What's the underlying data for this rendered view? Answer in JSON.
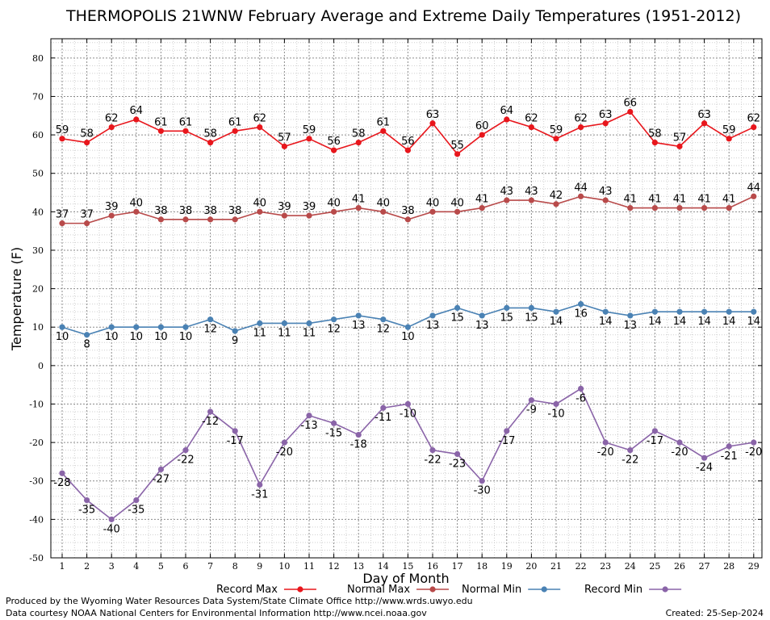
{
  "chart_data": {
    "type": "line",
    "title": "THERMOPOLIS 21WNW February Average and Extreme Daily Temperatures (1951-2012)",
    "xlabel": "Day of Month",
    "ylabel": "Temperature (F)",
    "ylim": [
      -50,
      85
    ],
    "yticks": [
      -50,
      -40,
      -30,
      -20,
      -10,
      0,
      10,
      20,
      30,
      40,
      50,
      60,
      70,
      80
    ],
    "x": [
      1,
      2,
      3,
      4,
      5,
      6,
      7,
      8,
      9,
      10,
      11,
      12,
      13,
      14,
      15,
      16,
      17,
      18,
      19,
      20,
      21,
      22,
      23,
      24,
      25,
      26,
      27,
      28,
      29
    ],
    "grid": true,
    "legend_position": "bottom",
    "series": [
      {
        "name": "Record Max",
        "color": "#e8161c",
        "values": [
          59,
          58,
          62,
          64,
          61,
          61,
          58,
          61,
          62,
          57,
          59,
          56,
          58,
          61,
          56,
          63,
          55,
          60,
          64,
          62,
          59,
          62,
          63,
          66,
          58,
          57,
          63,
          59,
          62
        ]
      },
      {
        "name": "Normal Max",
        "color": "#b84a4a",
        "values": [
          37,
          37,
          39,
          40,
          38,
          38,
          38,
          38,
          40,
          39,
          39,
          40,
          41,
          40,
          38,
          40,
          40,
          41,
          43,
          43,
          42,
          44,
          43,
          41,
          41,
          41,
          41,
          41,
          44
        ]
      },
      {
        "name": "Normal Min",
        "color": "#4a82b4",
        "values": [
          10,
          8,
          10,
          10,
          10,
          10,
          12,
          9,
          11,
          11,
          11,
          12,
          13,
          12,
          10,
          13,
          15,
          13,
          15,
          15,
          14,
          16,
          14,
          13,
          14,
          14,
          14,
          14,
          14
        ]
      },
      {
        "name": "Record Min",
        "color": "#8a64a8",
        "values": [
          -28,
          -35,
          -40,
          -35,
          -27,
          -22,
          -12,
          -17,
          -31,
          -20,
          -13,
          -15,
          -18,
          -11,
          -10,
          -22,
          -23,
          -30,
          -17,
          -9,
          -10,
          -6,
          -20,
          -22,
          -17,
          -20,
          -24,
          -21,
          -20
        ]
      }
    ]
  },
  "footer": {
    "credit_line1": "Produced by the Wyoming Water Resources Data System/State Climate Office http://www.wrds.uwyo.edu",
    "credit_line2": "Data courtesy NOAA National Centers for Environmental Information http://www.ncei.noaa.gov",
    "created": "Created:  25-Sep-2024"
  }
}
